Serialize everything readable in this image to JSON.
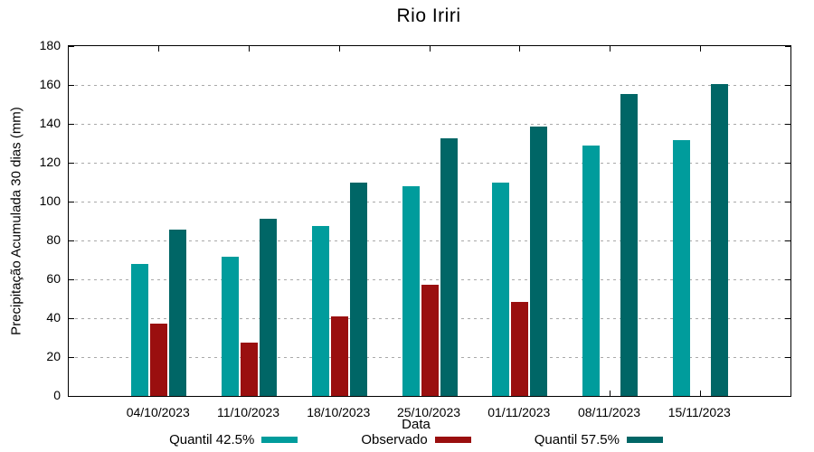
{
  "title": "Rio Iriri",
  "chart_data": {
    "type": "bar",
    "title": "Rio Iriri",
    "xlabel": "Data",
    "ylabel": "Precipitação Acumulada 30 dias (mm)",
    "categories": [
      "04/10/2023",
      "11/10/2023",
      "18/10/2023",
      "25/10/2023",
      "01/11/2023",
      "08/11/2023",
      "15/11/2023"
    ],
    "series": [
      {
        "name": "Quantil 42.5%",
        "color": "#009c9c",
        "values": [
          68,
          71.5,
          87.5,
          108,
          110,
          129,
          131.5
        ]
      },
      {
        "name": "Observado",
        "color": "#9a0f0f",
        "values": [
          37,
          27.5,
          41,
          57,
          48.5,
          null,
          null
        ]
      },
      {
        "name": "Quantil 57.5%",
        "color": "#006666",
        "values": [
          85.5,
          91,
          110,
          132.5,
          138.5,
          155.5,
          160.5
        ]
      }
    ],
    "ylim": [
      0,
      180
    ],
    "yticks": [
      0,
      20,
      40,
      60,
      80,
      100,
      120,
      140,
      160,
      180
    ],
    "grid": true,
    "gridline_color": "#a9a9a9",
    "axis_color": "#000000",
    "legend_position": "bottom"
  }
}
